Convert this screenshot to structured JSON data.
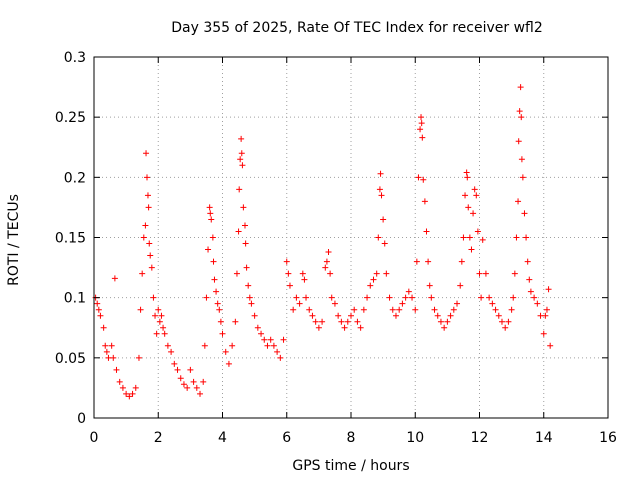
{
  "chart_data": {
    "type": "scatter",
    "title": "Day 355 of 2025, Rate Of TEC Index for receiver wfl2",
    "xlabel": "GPS time / hours",
    "ylabel": "ROTI / TECUs",
    "xlim": [
      0,
      16
    ],
    "ylim": [
      0,
      0.3
    ],
    "xticks": [
      "0",
      "2",
      "4",
      "6",
      "8",
      "10",
      "12",
      "14",
      "16"
    ],
    "xtick_values": [
      0,
      2,
      4,
      6,
      8,
      10,
      12,
      14,
      16
    ],
    "yticks": [
      "0",
      "0.05",
      "0.1",
      "0.15",
      "0.2",
      "0.25",
      "0.3"
    ],
    "ytick_values": [
      0,
      0.05,
      0.1,
      0.15,
      0.2,
      0.25,
      0.3
    ],
    "grid": true,
    "marker": "plus",
    "point_color": "#ff0000",
    "series": [
      {
        "name": "ROTI",
        "points": [
          [
            0.05,
            0.1
          ],
          [
            0.1,
            0.095
          ],
          [
            0.15,
            0.09
          ],
          [
            0.2,
            0.085
          ],
          [
            0.3,
            0.075
          ],
          [
            0.35,
            0.06
          ],
          [
            0.4,
            0.055
          ],
          [
            0.45,
            0.05
          ],
          [
            0.55,
            0.06
          ],
          [
            0.6,
            0.05
          ],
          [
            0.65,
            0.116
          ],
          [
            0.7,
            0.04
          ],
          [
            0.8,
            0.03
          ],
          [
            0.9,
            0.025
          ],
          [
            1.0,
            0.02
          ],
          [
            1.1,
            0.018
          ],
          [
            1.2,
            0.02
          ],
          [
            1.3,
            0.025
          ],
          [
            1.4,
            0.05
          ],
          [
            1.45,
            0.09
          ],
          [
            1.5,
            0.12
          ],
          [
            1.55,
            0.15
          ],
          [
            1.6,
            0.16
          ],
          [
            1.62,
            0.22
          ],
          [
            1.65,
            0.2
          ],
          [
            1.68,
            0.185
          ],
          [
            1.7,
            0.175
          ],
          [
            1.72,
            0.145
          ],
          [
            1.75,
            0.135
          ],
          [
            1.8,
            0.125
          ],
          [
            1.85,
            0.1
          ],
          [
            1.9,
            0.085
          ],
          [
            1.95,
            0.07
          ],
          [
            2.0,
            0.09
          ],
          [
            2.05,
            0.08
          ],
          [
            2.1,
            0.085
          ],
          [
            2.15,
            0.075
          ],
          [
            2.2,
            0.07
          ],
          [
            2.3,
            0.06
          ],
          [
            2.4,
            0.055
          ],
          [
            2.5,
            0.045
          ],
          [
            2.6,
            0.04
          ],
          [
            2.7,
            0.033
          ],
          [
            2.8,
            0.028
          ],
          [
            2.9,
            0.025
          ],
          [
            3.0,
            0.04
          ],
          [
            3.1,
            0.03
          ],
          [
            3.2,
            0.025
          ],
          [
            3.3,
            0.02
          ],
          [
            3.4,
            0.03
          ],
          [
            3.45,
            0.06
          ],
          [
            3.5,
            0.1
          ],
          [
            3.55,
            0.14
          ],
          [
            3.6,
            0.175
          ],
          [
            3.62,
            0.17
          ],
          [
            3.65,
            0.165
          ],
          [
            3.7,
            0.15
          ],
          [
            3.72,
            0.13
          ],
          [
            3.75,
            0.115
          ],
          [
            3.8,
            0.105
          ],
          [
            3.85,
            0.095
          ],
          [
            3.9,
            0.09
          ],
          [
            3.95,
            0.08
          ],
          [
            4.0,
            0.07
          ],
          [
            4.1,
            0.055
          ],
          [
            4.2,
            0.045
          ],
          [
            4.3,
            0.06
          ],
          [
            4.4,
            0.08
          ],
          [
            4.45,
            0.12
          ],
          [
            4.5,
            0.155
          ],
          [
            4.52,
            0.19
          ],
          [
            4.55,
            0.215
          ],
          [
            4.58,
            0.232
          ],
          [
            4.6,
            0.22
          ],
          [
            4.62,
            0.21
          ],
          [
            4.65,
            0.175
          ],
          [
            4.7,
            0.16
          ],
          [
            4.72,
            0.145
          ],
          [
            4.75,
            0.125
          ],
          [
            4.8,
            0.11
          ],
          [
            4.85,
            0.1
          ],
          [
            4.9,
            0.095
          ],
          [
            5.0,
            0.085
          ],
          [
            5.1,
            0.075
          ],
          [
            5.2,
            0.07
          ],
          [
            5.3,
            0.065
          ],
          [
            5.4,
            0.06
          ],
          [
            5.5,
            0.065
          ],
          [
            5.6,
            0.06
          ],
          [
            5.7,
            0.055
          ],
          [
            5.8,
            0.05
          ],
          [
            5.9,
            0.065
          ],
          [
            6.0,
            0.13
          ],
          [
            6.05,
            0.12
          ],
          [
            6.1,
            0.11
          ],
          [
            6.2,
            0.09
          ],
          [
            6.3,
            0.1
          ],
          [
            6.4,
            0.095
          ],
          [
            6.5,
            0.12
          ],
          [
            6.55,
            0.115
          ],
          [
            6.6,
            0.1
          ],
          [
            6.7,
            0.09
          ],
          [
            6.8,
            0.085
          ],
          [
            6.9,
            0.08
          ],
          [
            7.0,
            0.075
          ],
          [
            7.1,
            0.08
          ],
          [
            7.2,
            0.125
          ],
          [
            7.25,
            0.13
          ],
          [
            7.3,
            0.138
          ],
          [
            7.35,
            0.12
          ],
          [
            7.4,
            0.1
          ],
          [
            7.5,
            0.095
          ],
          [
            7.6,
            0.085
          ],
          [
            7.7,
            0.08
          ],
          [
            7.8,
            0.075
          ],
          [
            7.9,
            0.08
          ],
          [
            8.0,
            0.085
          ],
          [
            8.1,
            0.09
          ],
          [
            8.2,
            0.08
          ],
          [
            8.3,
            0.075
          ],
          [
            8.4,
            0.09
          ],
          [
            8.5,
            0.1
          ],
          [
            8.6,
            0.11
          ],
          [
            8.7,
            0.115
          ],
          [
            8.8,
            0.12
          ],
          [
            8.85,
            0.15
          ],
          [
            8.9,
            0.19
          ],
          [
            8.92,
            0.203
          ],
          [
            8.95,
            0.185
          ],
          [
            9.0,
            0.165
          ],
          [
            9.05,
            0.145
          ],
          [
            9.1,
            0.12
          ],
          [
            9.2,
            0.1
          ],
          [
            9.3,
            0.09
          ],
          [
            9.4,
            0.085
          ],
          [
            9.5,
            0.09
          ],
          [
            9.6,
            0.095
          ],
          [
            9.7,
            0.1
          ],
          [
            9.8,
            0.105
          ],
          [
            9.9,
            0.1
          ],
          [
            10.0,
            0.09
          ],
          [
            10.05,
            0.13
          ],
          [
            10.1,
            0.2
          ],
          [
            10.15,
            0.24
          ],
          [
            10.18,
            0.25
          ],
          [
            10.2,
            0.245
          ],
          [
            10.22,
            0.233
          ],
          [
            10.25,
            0.198
          ],
          [
            10.3,
            0.18
          ],
          [
            10.35,
            0.155
          ],
          [
            10.4,
            0.13
          ],
          [
            10.45,
            0.11
          ],
          [
            10.5,
            0.1
          ],
          [
            10.6,
            0.09
          ],
          [
            10.7,
            0.085
          ],
          [
            10.8,
            0.08
          ],
          [
            10.9,
            0.075
          ],
          [
            11.0,
            0.08
          ],
          [
            11.1,
            0.085
          ],
          [
            11.2,
            0.09
          ],
          [
            11.3,
            0.095
          ],
          [
            11.4,
            0.11
          ],
          [
            11.45,
            0.13
          ],
          [
            11.5,
            0.15
          ],
          [
            11.55,
            0.185
          ],
          [
            11.6,
            0.204
          ],
          [
            11.62,
            0.2
          ],
          [
            11.65,
            0.175
          ],
          [
            11.7,
            0.15
          ],
          [
            11.75,
            0.14
          ],
          [
            11.8,
            0.17
          ],
          [
            11.85,
            0.19
          ],
          [
            11.9,
            0.185
          ],
          [
            11.95,
            0.155
          ],
          [
            12.0,
            0.12
          ],
          [
            12.05,
            0.1
          ],
          [
            12.1,
            0.148
          ],
          [
            12.2,
            0.12
          ],
          [
            12.3,
            0.1
          ],
          [
            12.4,
            0.095
          ],
          [
            12.5,
            0.09
          ],
          [
            12.6,
            0.085
          ],
          [
            12.7,
            0.08
          ],
          [
            12.8,
            0.075
          ],
          [
            12.9,
            0.08
          ],
          [
            13.0,
            0.09
          ],
          [
            13.05,
            0.1
          ],
          [
            13.1,
            0.12
          ],
          [
            13.15,
            0.15
          ],
          [
            13.2,
            0.18
          ],
          [
            13.22,
            0.23
          ],
          [
            13.25,
            0.255
          ],
          [
            13.28,
            0.275
          ],
          [
            13.3,
            0.25
          ],
          [
            13.32,
            0.215
          ],
          [
            13.35,
            0.2
          ],
          [
            13.4,
            0.17
          ],
          [
            13.45,
            0.15
          ],
          [
            13.5,
            0.13
          ],
          [
            13.55,
            0.115
          ],
          [
            13.6,
            0.105
          ],
          [
            13.7,
            0.1
          ],
          [
            13.8,
            0.095
          ],
          [
            13.9,
            0.085
          ],
          [
            14.0,
            0.07
          ],
          [
            14.05,
            0.085
          ],
          [
            14.1,
            0.09
          ],
          [
            14.15,
            0.107
          ],
          [
            14.2,
            0.06
          ]
        ]
      }
    ]
  }
}
